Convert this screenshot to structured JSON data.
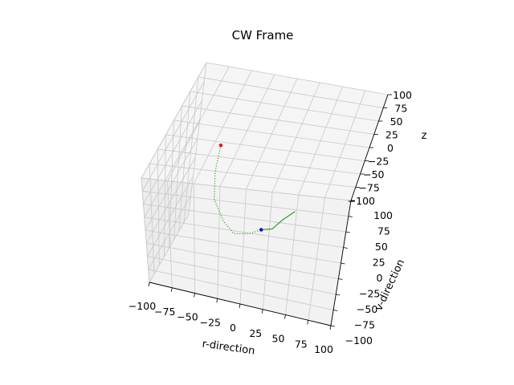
{
  "chart_data": {
    "type": "line",
    "title": "CW Frame",
    "xlabel": "r-direction",
    "ylabel": "v-direction",
    "zlabel": "z",
    "xlim": [
      -100,
      100
    ],
    "ylim": [
      -100,
      100
    ],
    "zlim": [
      -100,
      100
    ],
    "x_ticks": [
      "−100",
      "−75",
      "−50",
      "−25",
      "0",
      "25",
      "50",
      "75",
      "100"
    ],
    "y_ticks": [
      "−100",
      "−75",
      "−50",
      "−25",
      "0",
      "25",
      "50",
      "75",
      "100"
    ],
    "z_ticks": [
      "−100",
      "−75",
      "−50",
      "−25",
      "0",
      "25",
      "50",
      "75",
      "100"
    ],
    "grid": true,
    "series": [
      {
        "style": "dotted",
        "color": "#2ca02c",
        "points": [
          [
            -70,
            10,
            80
          ],
          [
            -60,
            15,
            20
          ],
          [
            -45,
            20,
            -40
          ],
          [
            -25,
            20,
            -80
          ],
          [
            -10,
            20,
            -100
          ],
          [
            5,
            20,
            -95
          ],
          [
            15,
            25,
            -90
          ]
        ]
      },
      {
        "style": "solid",
        "color": "#2ca02c",
        "points": [
          [
            15,
            25,
            -90
          ],
          [
            25,
            25,
            -85
          ],
          [
            32,
            30,
            -70
          ],
          [
            40,
            30,
            -50
          ]
        ]
      }
    ],
    "markers": [
      {
        "color": "#ff0000",
        "point": [
          -70,
          10,
          80
        ]
      },
      {
        "color": "#0000ff",
        "point": [
          15,
          25,
          -90
        ]
      }
    ]
  }
}
